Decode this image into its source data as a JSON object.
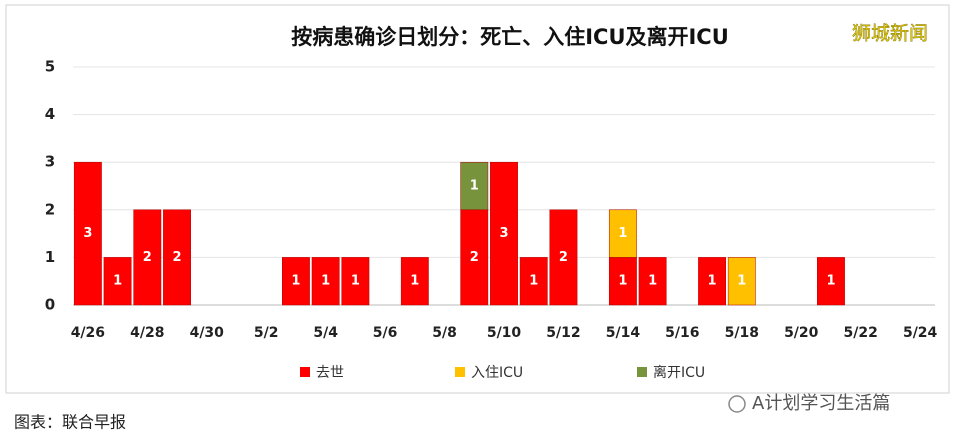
{
  "chart_data": {
    "type": "bar",
    "stacked": true,
    "title": "按病患确诊日划分：死亡、入住ICU及离开ICU",
    "categories": [
      "4/26",
      null,
      "4/28",
      null,
      "4/30",
      null,
      "5/2",
      null,
      "5/4",
      null,
      "5/6",
      null,
      "5/8",
      null,
      "5/10",
      null,
      "5/12",
      null,
      "5/14",
      null,
      "5/16",
      null,
      "5/18",
      null,
      "5/20",
      null,
      "5/22",
      null,
      "5/24"
    ],
    "series": [
      {
        "name": "去世",
        "color": "#ff0000",
        "values": [
          3,
          1,
          2,
          2,
          0,
          0,
          0,
          1,
          1,
          1,
          0,
          1,
          0,
          2,
          3,
          1,
          2,
          0,
          1,
          1,
          0,
          1,
          0,
          0,
          0,
          1,
          0,
          0,
          0
        ]
      },
      {
        "name": "入住ICU",
        "color": "#ffc000",
        "values": [
          0,
          0,
          0,
          0,
          0,
          0,
          0,
          0,
          0,
          0,
          0,
          0,
          0,
          0,
          0,
          0,
          0,
          0,
          1,
          0,
          0,
          0,
          1,
          0,
          0,
          0,
          0,
          0,
          0
        ]
      },
      {
        "name": "离开ICU",
        "color": "#77933c",
        "values": [
          0,
          0,
          0,
          0,
          0,
          0,
          0,
          0,
          0,
          0,
          0,
          0,
          0,
          1,
          0,
          0,
          0,
          0,
          0,
          0,
          0,
          0,
          0,
          0,
          0,
          0,
          0,
          0,
          0
        ]
      }
    ],
    "ylim": [
      0,
      5
    ],
    "yticks": [
      0,
      1,
      2,
      3,
      4,
      5
    ],
    "grid": true,
    "legend": "bottom"
  },
  "watermark": "狮城新闻",
  "source": "图表：联合早报",
  "account": "A计划学习生活篇"
}
